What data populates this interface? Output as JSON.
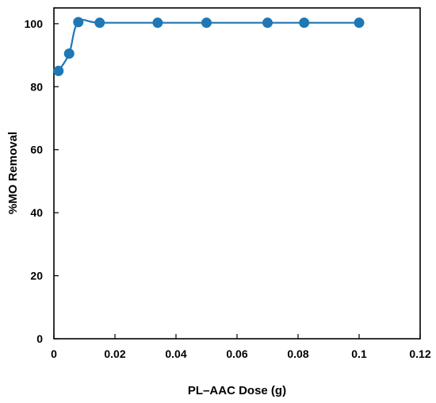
{
  "chart_data": {
    "type": "line",
    "title": "",
    "xlabel": "PL–AAC Dose (g)",
    "ylabel": "%MO Removal",
    "xlim": [
      0,
      0.12
    ],
    "ylim": [
      0,
      105
    ],
    "x_ticks": [
      "0",
      "0.02",
      "0.04",
      "0.06",
      "0.08",
      "0.1",
      "0.12"
    ],
    "y_ticks": [
      "0",
      "20",
      "40",
      "60",
      "80",
      "100"
    ],
    "grid": false,
    "legend": "none",
    "series": [
      {
        "x": [
          0.0015,
          0.005,
          0.008,
          0.015,
          0.034,
          0.05,
          0.07,
          0.082,
          0.1
        ],
        "y": [
          85,
          90.5,
          100.5,
          100.3,
          100.3,
          100.3,
          100.3,
          100.3,
          100.3
        ],
        "color": "#1f77b4",
        "marker": "circle"
      }
    ]
  }
}
